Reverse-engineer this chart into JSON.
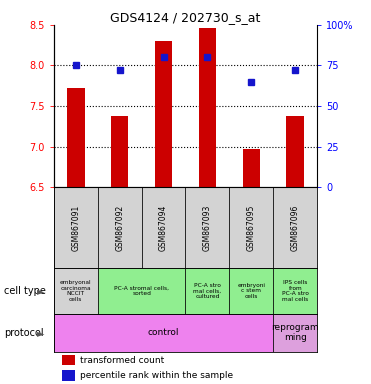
{
  "title": "GDS4124 / 202730_s_at",
  "samples": [
    "GSM867091",
    "GSM867092",
    "GSM867094",
    "GSM867093",
    "GSM867095",
    "GSM867096"
  ],
  "bar_values": [
    7.72,
    7.38,
    8.3,
    8.46,
    6.97,
    7.38
  ],
  "dot_values": [
    75,
    72,
    80,
    80,
    65,
    72
  ],
  "ylim_left": [
    6.5,
    8.5
  ],
  "ylim_right": [
    0,
    100
  ],
  "yticks_left": [
    6.5,
    7.0,
    7.5,
    8.0,
    8.5
  ],
  "yticks_right": [
    0,
    25,
    50,
    75,
    100
  ],
  "ytick_labels_right": [
    "0",
    "25",
    "50",
    "75",
    "100%"
  ],
  "hlines": [
    7.0,
    7.5,
    8.0
  ],
  "bar_color": "#cc0000",
  "dot_color": "#1515cc",
  "cell_types": [
    {
      "label": "embryonal\ncarcinoma\nNCCIT\ncells",
      "span": [
        0,
        1
      ],
      "color": "#d3d3d3"
    },
    {
      "label": "PC-A stromal cells,\nsorted",
      "span": [
        1,
        3
      ],
      "color": "#90ee90"
    },
    {
      "label": "PC-A stro\nmal cells,\ncultured",
      "span": [
        3,
        4
      ],
      "color": "#90ee90"
    },
    {
      "label": "embryoni\nc stem\ncells",
      "span": [
        4,
        5
      ],
      "color": "#90ee90"
    },
    {
      "label": "IPS cells\nfrom\nPC-A stro\nmal cells",
      "span": [
        5,
        6
      ],
      "color": "#90ee90"
    }
  ],
  "protocols": [
    {
      "label": "control",
      "span": [
        0,
        5
      ],
      "color": "#ee82ee"
    },
    {
      "label": "reprogram\nming",
      "span": [
        5,
        6
      ],
      "color": "#dda0dd"
    }
  ],
  "legend_bar_label": "transformed count",
  "legend_dot_label": "percentile rank within the sample",
  "cell_type_label": "cell type",
  "protocol_label": "protocol"
}
